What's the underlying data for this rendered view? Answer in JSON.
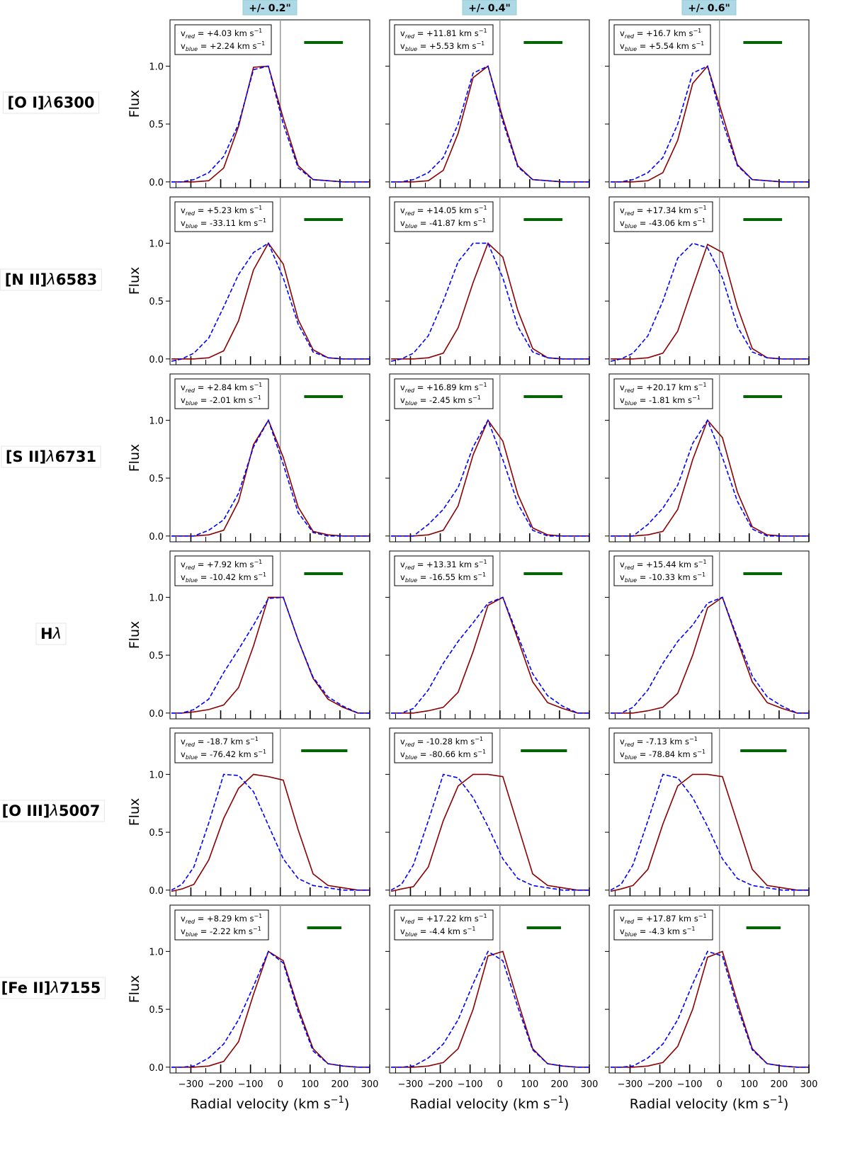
{
  "columns": [
    "+/- 0.2\"",
    "+/- 0.4\"",
    "+/- 0.6\""
  ],
  "rows": [
    {
      "label": "[O I]",
      "lambda": "6300"
    },
    {
      "label": "[N II]",
      "lambda": "6583"
    },
    {
      "label": "[S II]",
      "lambda": "6731"
    },
    {
      "label": "H",
      "lambda": ""
    },
    {
      "label": "[O III]",
      "lambda": "5007"
    },
    {
      "label": "[Fe II]",
      "lambda": "7155"
    }
  ],
  "colors": {
    "red": "#8b0000",
    "blue": "#0000ff",
    "scale_bar": "#006400",
    "header_bg": "#add8e6",
    "zero_line": "#999999"
  },
  "chart_data": {
    "type": "line",
    "ylabel": "Flux",
    "xlabel_main": "Radial velocity (km s",
    "xlabel_sup": "−1",
    "xlim": [
      -370,
      300
    ],
    "ylim": [
      -0.05,
      1.4
    ],
    "xticks": [
      -300,
      -200,
      -100,
      0,
      100,
      200,
      300
    ],
    "xtick_labels": [
      "−300",
      "−200",
      "−100",
      "0",
      "100",
      "200",
      "300"
    ],
    "yticks": [
      0.0,
      0.5,
      1.0
    ],
    "ytick_labels": [
      "0.0",
      "0.5",
      "1.0"
    ],
    "velocity_grid": [
      -365,
      -330,
      -290,
      -240,
      -190,
      -140,
      -90,
      -40,
      10,
      60,
      110,
      160,
      210,
      260,
      300
    ],
    "vel_prefix": "v",
    "vel_sub_red": "red",
    "vel_sub_blue": "blue",
    "vel_unit": "km s",
    "vel_unit_sup": "−1",
    "panels": [
      [
        {
          "v_red": "+4.03",
          "v_blue": "+2.24",
          "bar": [
            80,
            210
          ],
          "red": [
            0,
            0,
            0,
            0.01,
            0.12,
            0.48,
            0.99,
            1.0,
            0.55,
            0.14,
            0.02,
            0.01,
            0.0,
            0.0,
            0.0
          ],
          "blue": [
            0,
            0,
            0.02,
            0.08,
            0.22,
            0.5,
            0.97,
            1.0,
            0.5,
            0.12,
            0.02,
            0.01,
            0.0,
            0.0,
            0.0
          ]
        },
        {
          "v_red": "+11.81",
          "v_blue": "+5.53",
          "bar": [
            80,
            210
          ],
          "red": [
            0,
            0,
            0,
            0.01,
            0.1,
            0.42,
            0.9,
            1.0,
            0.55,
            0.14,
            0.02,
            0.01,
            0.0,
            0.0,
            0.0
          ],
          "blue": [
            0,
            0,
            0.02,
            0.08,
            0.21,
            0.5,
            0.94,
            1.0,
            0.52,
            0.13,
            0.02,
            0.01,
            0.0,
            0.0,
            0.0
          ]
        },
        {
          "v_red": "+16.7",
          "v_blue": "+5.54",
          "bar": [
            80,
            210
          ],
          "red": [
            0,
            0,
            0,
            0.01,
            0.08,
            0.36,
            0.85,
            1.0,
            0.58,
            0.15,
            0.02,
            0.01,
            0.0,
            0.0,
            0.0
          ],
          "blue": [
            0,
            0,
            0.02,
            0.08,
            0.21,
            0.5,
            0.94,
            1.0,
            0.52,
            0.14,
            0.02,
            0.01,
            0.0,
            0.0,
            0.0
          ]
        }
      ],
      [
        {
          "v_red": "+5.23",
          "v_blue": "-33.11",
          "bar": [
            80,
            210
          ],
          "red": [
            0,
            0,
            0,
            0.01,
            0.07,
            0.33,
            0.77,
            1.0,
            0.82,
            0.34,
            0.08,
            0.01,
            0.0,
            0.0,
            0.0
          ],
          "blue": [
            -0.02,
            0,
            0.05,
            0.18,
            0.45,
            0.73,
            0.92,
            1.0,
            0.7,
            0.3,
            0.06,
            0.01,
            0.0,
            0.0,
            0.0
          ]
        },
        {
          "v_red": "+14.05",
          "v_blue": "-41.87",
          "bar": [
            80,
            210
          ],
          "red": [
            0,
            0,
            0,
            0.01,
            0.05,
            0.27,
            0.66,
            1.0,
            0.88,
            0.42,
            0.09,
            0.01,
            0.0,
            0.0,
            0.0
          ],
          "blue": [
            -0.02,
            0,
            0.05,
            0.2,
            0.5,
            0.84,
            1.0,
            1.0,
            0.7,
            0.28,
            0.06,
            0.01,
            0.0,
            0.0,
            0.0
          ]
        },
        {
          "v_red": "+17.34",
          "v_blue": "-43.06",
          "bar": [
            80,
            210
          ],
          "red": [
            0,
            0,
            0,
            0.01,
            0.05,
            0.24,
            0.62,
            0.99,
            0.92,
            0.45,
            0.09,
            0.01,
            0.0,
            0.0,
            0.0
          ],
          "blue": [
            -0.02,
            0,
            0.05,
            0.2,
            0.5,
            0.87,
            1.0,
            0.96,
            0.7,
            0.28,
            0.06,
            0.01,
            0.0,
            0.0,
            0.0
          ]
        }
      ],
      [
        {
          "v_red": "+2.84",
          "v_blue": "-2.01",
          "bar": [
            80,
            210
          ],
          "red": [
            0,
            0,
            0,
            0.01,
            0.05,
            0.3,
            0.79,
            1.0,
            0.68,
            0.25,
            0.04,
            0.01,
            0.0,
            0.0,
            0.0
          ],
          "blue": [
            0,
            0,
            0,
            0.05,
            0.14,
            0.37,
            0.77,
            1.0,
            0.62,
            0.2,
            0.03,
            0.0,
            0.0,
            0.0,
            0.0
          ]
        },
        {
          "v_red": "+16.89",
          "v_blue": "-2.45",
          "bar": [
            80,
            210
          ],
          "red": [
            0,
            0,
            0,
            0.01,
            0.05,
            0.26,
            0.7,
            1.0,
            0.82,
            0.36,
            0.07,
            0.01,
            0.0,
            0.0,
            0.0
          ],
          "blue": [
            0,
            0,
            0,
            0.1,
            0.23,
            0.42,
            0.77,
            1.0,
            0.66,
            0.28,
            0.05,
            0.0,
            0.0,
            0.0,
            0.0
          ]
        },
        {
          "v_red": "+20.17",
          "v_blue": "-1.81",
          "bar": [
            80,
            210
          ],
          "red": [
            0,
            0,
            0,
            0.01,
            0.04,
            0.23,
            0.66,
            1.0,
            0.85,
            0.38,
            0.08,
            0.01,
            0.0,
            0.0,
            0.0
          ],
          "blue": [
            0,
            0,
            0,
            0.1,
            0.24,
            0.44,
            0.8,
            1.0,
            0.68,
            0.3,
            0.06,
            0.0,
            0.0,
            0.0,
            0.0
          ]
        }
      ],
      [
        {
          "v_red": "+7.92",
          "v_blue": "-10.42",
          "bar": [
            80,
            210
          ],
          "red": [
            0,
            0,
            0.01,
            0.03,
            0.07,
            0.22,
            0.58,
            1.0,
            1.0,
            0.63,
            0.3,
            0.12,
            0.05,
            0.0,
            0.0
          ],
          "blue": [
            0,
            0,
            0.03,
            0.12,
            0.35,
            0.55,
            0.76,
            0.99,
            1.0,
            0.63,
            0.31,
            0.14,
            0.06,
            0.0,
            0.0
          ]
        },
        {
          "v_red": "+13.31",
          "v_blue": "-16.55",
          "bar": [
            80,
            210
          ],
          "red": [
            0,
            0,
            0,
            0.02,
            0.05,
            0.18,
            0.53,
            0.93,
            1.0,
            0.64,
            0.27,
            0.09,
            0.04,
            0.0,
            0.0
          ],
          "blue": [
            0,
            0,
            0.04,
            0.2,
            0.43,
            0.62,
            0.78,
            0.95,
            1.0,
            0.67,
            0.34,
            0.15,
            0.06,
            0.0,
            0.0
          ]
        },
        {
          "v_red": "+15.44",
          "v_blue": "-10.33",
          "bar": [
            80,
            210
          ],
          "red": [
            0,
            0,
            0,
            0.02,
            0.05,
            0.17,
            0.5,
            0.91,
            1.0,
            0.63,
            0.27,
            0.09,
            0.04,
            0.0,
            0.0
          ],
          "blue": [
            0,
            0,
            0.05,
            0.2,
            0.43,
            0.62,
            0.76,
            0.95,
            1.0,
            0.65,
            0.32,
            0.14,
            0.06,
            0.0,
            0.0
          ]
        }
      ],
      [
        {
          "v_red": "-18.7",
          "v_blue": "-76.42",
          "bar": [
            70,
            225
          ],
          "red": [
            -0.01,
            0.01,
            0.05,
            0.26,
            0.62,
            0.88,
            1.0,
            0.98,
            0.95,
            0.52,
            0.14,
            0.04,
            0.02,
            0.0,
            0.0
          ],
          "blue": [
            0,
            0.05,
            0.2,
            0.58,
            1.0,
            0.99,
            0.85,
            0.56,
            0.27,
            0.1,
            0.04,
            0.02,
            0.0,
            0.0,
            0.0
          ]
        },
        {
          "v_red": "-10.28",
          "v_blue": "-80.66",
          "bar": [
            70,
            225
          ],
          "red": [
            -0.01,
            0.01,
            0.03,
            0.2,
            0.6,
            0.9,
            1.0,
            1.0,
            0.98,
            0.56,
            0.14,
            0.04,
            0.02,
            0.0,
            0.0
          ],
          "blue": [
            0,
            0.05,
            0.22,
            0.6,
            1.0,
            0.97,
            0.8,
            0.55,
            0.27,
            0.1,
            0.04,
            0.02,
            0.0,
            0.0,
            0.0
          ]
        },
        {
          "v_red": "-7.13",
          "v_blue": "-78.84",
          "bar": [
            70,
            225
          ],
          "red": [
            -0.01,
            0.01,
            0.04,
            0.18,
            0.57,
            0.9,
            1.0,
            1.0,
            0.98,
            0.58,
            0.18,
            0.04,
            0.02,
            0.0,
            0.0
          ],
          "blue": [
            0,
            0.05,
            0.22,
            0.6,
            1.0,
            0.97,
            0.8,
            0.55,
            0.27,
            0.1,
            0.04,
            0.02,
            0.0,
            0.0,
            0.0
          ]
        }
      ],
      [
        {
          "v_red": "+8.29",
          "v_blue": "-2.22",
          "bar": [
            90,
            205
          ],
          "red": [
            0,
            0,
            0,
            0.01,
            0.05,
            0.22,
            0.63,
            1.0,
            0.92,
            0.51,
            0.16,
            0.03,
            0.01,
            0.0,
            0.0
          ],
          "blue": [
            0,
            0,
            0.01,
            0.08,
            0.2,
            0.41,
            0.7,
            1.0,
            0.9,
            0.48,
            0.14,
            0.03,
            0.01,
            0.0,
            0.0
          ]
        },
        {
          "v_red": "+17.22",
          "v_blue": "-4.4",
          "bar": [
            90,
            205
          ],
          "red": [
            0,
            0,
            0,
            0.01,
            0.04,
            0.16,
            0.5,
            0.96,
            1.0,
            0.57,
            0.16,
            0.03,
            0.01,
            0.0,
            0.0
          ],
          "blue": [
            0,
            0,
            0.01,
            0.08,
            0.2,
            0.41,
            0.72,
            1.0,
            0.92,
            0.52,
            0.15,
            0.03,
            0.01,
            0.0,
            0.0
          ]
        },
        {
          "v_red": "+17.87",
          "v_blue": "-4.3",
          "bar": [
            90,
            205
          ],
          "red": [
            0,
            0,
            0,
            0.01,
            0.04,
            0.18,
            0.5,
            0.95,
            1.0,
            0.56,
            0.16,
            0.03,
            0.01,
            0.0,
            0.0
          ],
          "blue": [
            0,
            0,
            0.01,
            0.08,
            0.2,
            0.41,
            0.72,
            1.0,
            0.96,
            0.52,
            0.15,
            0.03,
            0.01,
            0.0,
            0.0
          ]
        }
      ]
    ]
  }
}
